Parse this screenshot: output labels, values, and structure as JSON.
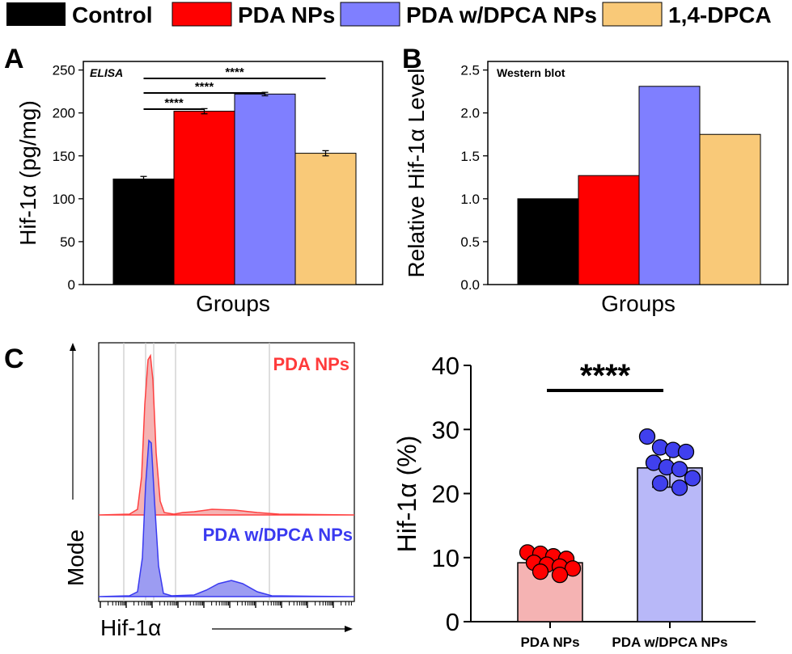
{
  "legend": {
    "items": [
      {
        "label": "Control",
        "color": "#000000"
      },
      {
        "label": "PDA NPs",
        "color": "#ff0000"
      },
      {
        "label": "PDA w/DPCA NPs",
        "color": "#7f7fff"
      },
      {
        "label": "1,4-DPCA",
        "color": "#f9c978"
      }
    ]
  },
  "panels": {
    "a": "A",
    "b": "B",
    "c": "C"
  },
  "colors": {
    "control": "#000000",
    "pda": "#ff0000",
    "dpca_nps": "#7f7fff",
    "dpca": "#f9c978",
    "pda_light": "#f5b3b3",
    "dpca_light": "#b8b8f8"
  },
  "chart_data": [
    {
      "type": "bar",
      "panel": "A",
      "inset_label": "ELISA",
      "categories": [
        "Control",
        "PDA NPs",
        "PDA w/DPCA NPs",
        "1,4-DPCA"
      ],
      "values": [
        123,
        202,
        222,
        153
      ],
      "errors": [
        3,
        3,
        2,
        3
      ],
      "xlabel": "Groups",
      "ylabel": "Hif-1α (pg/mg)",
      "ylim": [
        0,
        260
      ],
      "yticks": [
        "0",
        "50",
        "100",
        "150",
        "200",
        "250"
      ],
      "significance": [
        {
          "from": 0,
          "to": 1,
          "label": "****"
        },
        {
          "from": 0,
          "to": 2,
          "label": "****"
        },
        {
          "from": 0,
          "to": 3,
          "label": "****"
        }
      ]
    },
    {
      "type": "bar",
      "panel": "B",
      "inset_label": "Western blot",
      "categories": [
        "Control",
        "PDA NPs",
        "PDA w/DPCA NPs",
        "1,4-DPCA"
      ],
      "values": [
        1.0,
        1.27,
        2.31,
        1.75
      ],
      "xlabel": "Groups",
      "ylabel": "Relative Hif-1α Level",
      "ylim": [
        0,
        2.6
      ],
      "yticks": [
        "0.0",
        "0.5",
        "1.0",
        "1.5",
        "2.0",
        "2.5"
      ]
    },
    {
      "type": "area",
      "panel": "C",
      "series": [
        {
          "name": "PDA NPs",
          "color": "#ff0000"
        },
        {
          "name": "PDA w/DPCA NPs",
          "color": "#3a3af0"
        }
      ],
      "xlabel": "Hif-1α",
      "ylabel": "Mode"
    },
    {
      "type": "bar",
      "panel": "C",
      "categories": [
        "PDA NPs",
        "PDA w/DPCA NPs"
      ],
      "values": [
        9.2,
        24.0
      ],
      "errors": [
        1.0,
        3.0
      ],
      "points": [
        [
          10.8,
          10.6,
          10.2,
          9.8,
          9.2,
          8.9,
          8.6,
          8.3,
          7.8,
          7.3
        ],
        [
          28.9,
          27.2,
          26.8,
          26.5,
          24.8,
          24.1,
          23.8,
          22.4,
          21.6,
          20.9
        ]
      ],
      "ylabel": "Hif-1α (%)",
      "ylim": [
        0,
        40
      ],
      "yticks": [
        "0",
        "10",
        "20",
        "30",
        "40"
      ],
      "significance": [
        {
          "from": 0,
          "to": 1,
          "label": "****"
        }
      ]
    }
  ]
}
